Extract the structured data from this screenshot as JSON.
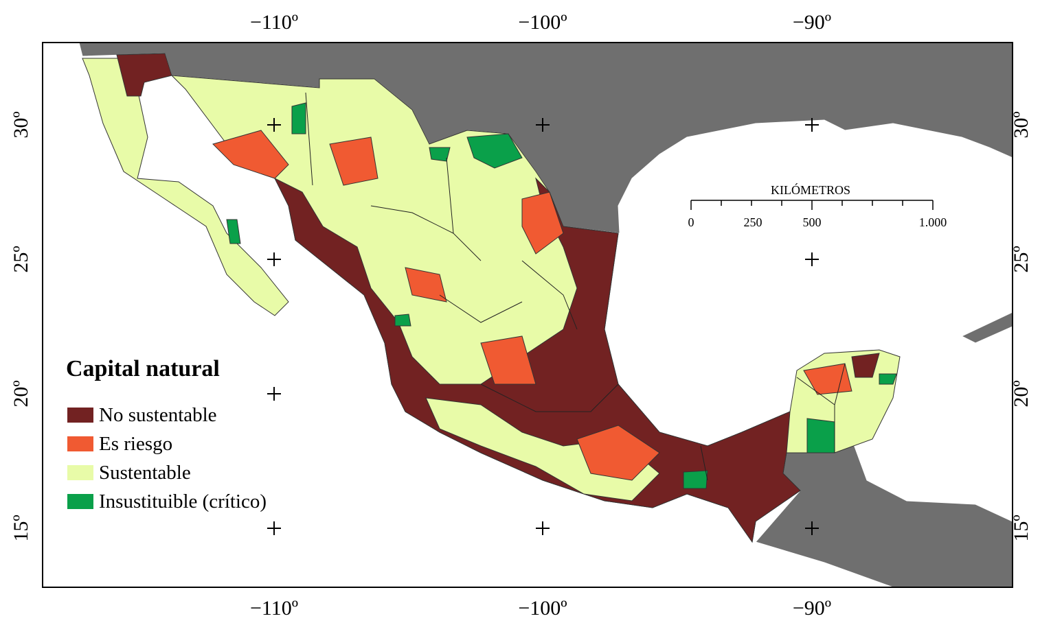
{
  "longitude_labels": [
    "−110º",
    "−100º",
    "−90º"
  ],
  "latitude_labels": [
    "30º",
    "25º",
    "20º",
    "15º"
  ],
  "scale": {
    "title": "KILÓMETROS",
    "labels": [
      "0",
      "250",
      "500",
      "1.000"
    ]
  },
  "legend": {
    "title": "Capital natural",
    "items": [
      {
        "label": "No sustentable",
        "color": "#722222"
      },
      {
        "label": "Es riesgo",
        "color": "#f05a32"
      },
      {
        "label": "Sustentable",
        "color": "#e8fba8"
      },
      {
        "label": "Insustituible (crítico)",
        "color": "#0aa04a"
      }
    ]
  }
}
